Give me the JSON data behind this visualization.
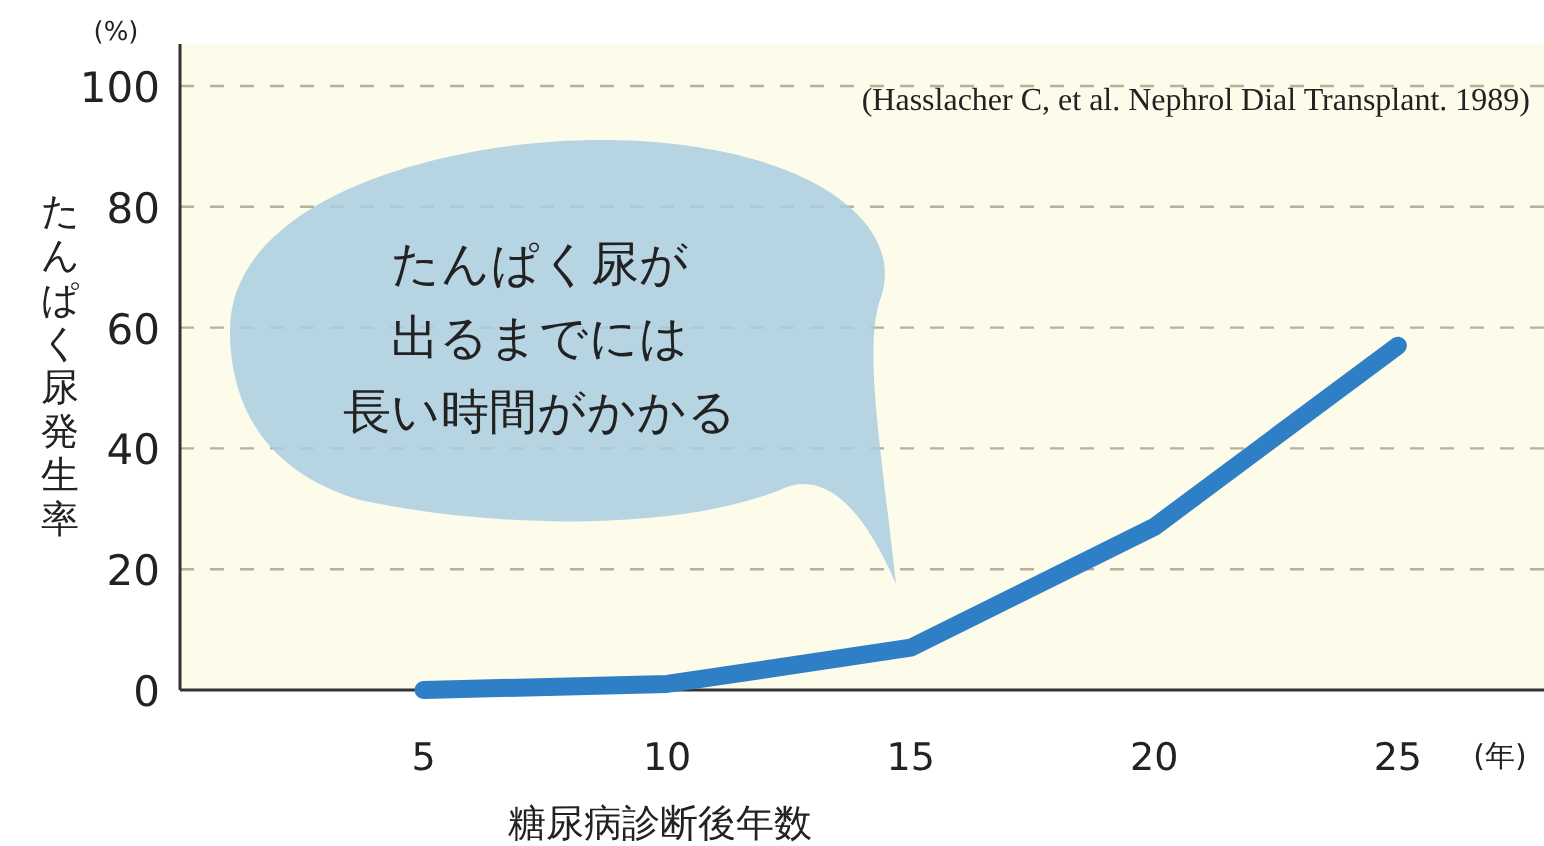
{
  "chart_data": {
    "type": "line",
    "xlabel": "糖尿病診断後年数",
    "ylabel": "たんぱく尿発生率",
    "x": [
      5,
      10,
      15,
      20,
      25
    ],
    "series": [
      {
        "color": "#2f7fc6",
        "values": [
          0,
          1,
          7,
          27,
          57
        ]
      }
    ],
    "xlim": [
      0,
      28
    ],
    "ylim": [
      0,
      100
    ],
    "xticks": [
      5,
      10,
      15,
      20,
      25
    ],
    "yticks": [
      0,
      20,
      40,
      60,
      80,
      100
    ],
    "grid": "y",
    "line_style": "solid",
    "marker": "none",
    "annotations": [
      "(Hasslacher C, et al. Nephrol Dial Transplant. 1989)",
      "たんぱく尿が",
      "出るまでには",
      "長い時間がかかる",
      "(%)",
      "(年)"
    ]
  }
}
